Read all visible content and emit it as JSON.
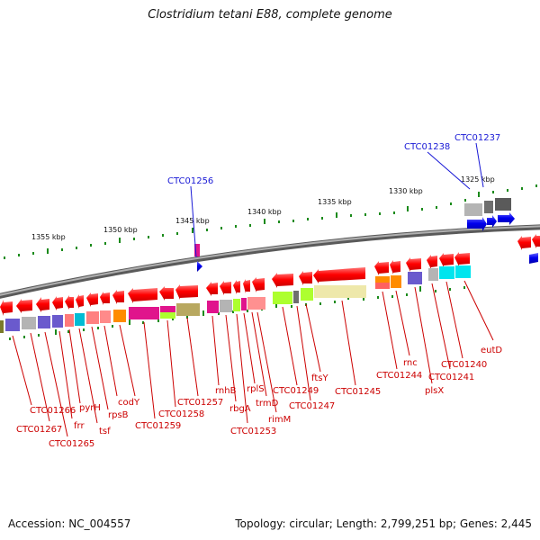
{
  "header": {
    "title": "Clostridium tetani E88, complete genome"
  },
  "footer": {
    "accession": "Accession: NC_004557",
    "info": "Topology: circular; Length: 2,799,251 bp; Genes: 2,445"
  },
  "scale": {
    "kbp_1355": "1355 kbp",
    "kbp_1350": "1350 kbp",
    "kbp_1345": "1345 kbp",
    "kbp_1340": "1340 kbp",
    "kbp_1335": "1335 kbp",
    "kbp_1330": "1330 kbp",
    "kbp_1325": "1325 kbp"
  },
  "blue_labels": {
    "ctc01256": "CTC01256",
    "ctc01238": "CTC01238",
    "ctc01237": "CTC01237"
  },
  "gene_labels": {
    "ctc01266": "CTC01266",
    "ctc01267": "CTC01267",
    "ctc01265": "CTC01265",
    "frr": "frr",
    "pyrH": "pyrH",
    "tsf": "tsf",
    "rpsB": "rpsB",
    "codY": "codY",
    "ctc01259": "CTC01259",
    "ctc01258": "CTC01258",
    "ctc01257": "CTC01257",
    "rnhB": "rnhB",
    "rbgA": "rbgA",
    "ctc01253": "CTC01253",
    "rplS": "rplS",
    "trmD": "trmD",
    "rimM": "rimM",
    "ctc01249": "CTC01249",
    "ctc01247": "CTC01247",
    "ftsY": "ftsY",
    "ctc01245": "CTC01245",
    "ctc01244": "CTC01244",
    "rnc": "rnc",
    "plsX": "plsX",
    "ctc01241": "CTC01241",
    "ctc01240": "CTC01240",
    "eutD": "eutD"
  },
  "colors": {
    "gene_red": "#ff0000",
    "gene_blue": "#0000ee",
    "label_red": "#cc0000",
    "label_blue": "#1a1ad6",
    "backbone": "#888888",
    "tick_green": "#1a8a1a"
  }
}
